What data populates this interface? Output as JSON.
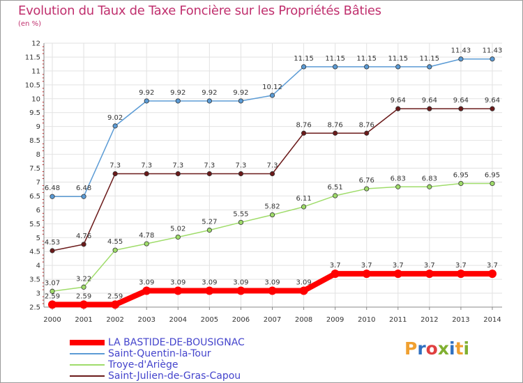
{
  "title": "Evolution du Taux de Taxe Foncière sur les Propriétés Bâties",
  "subtitle": "(en %)",
  "logo": {
    "text": "Proxiti",
    "letters": [
      "P",
      "r",
      "o",
      "x",
      "i",
      "t",
      "i"
    ],
    "colors": [
      "#f0a030",
      "#3070c0",
      "#e04040",
      "#80b030",
      "#3070c0",
      "#f0a030",
      "#80b030"
    ]
  },
  "chart_data": {
    "type": "line",
    "title": "Evolution du Taux de Taxe Foncière sur les Propriétés Bâties",
    "ylabel": "(en %)",
    "xlabel": "",
    "x": [
      "2000",
      "2001",
      "2002",
      "2003",
      "2004",
      "2005",
      "2006",
      "2007",
      "2008",
      "2009",
      "2010",
      "2011",
      "2012",
      "2013",
      "2014"
    ],
    "ylim": [
      2.5,
      12
    ],
    "yticks": [
      "2.5",
      "3",
      "3.5",
      "4",
      "4.5",
      "5",
      "5.5",
      "6",
      "6.5",
      "7",
      "7.5",
      "8",
      "8.5",
      "9",
      "9.5",
      "10",
      "10.5",
      "11",
      "11.5",
      "12"
    ],
    "grid": true,
    "series": [
      {
        "name": "Saint-Quentin-la-Tour",
        "color": "#5b9bd5",
        "bold": false,
        "values": [
          6.48,
          6.48,
          9.02,
          9.92,
          9.92,
          9.92,
          9.92,
          10.12,
          11.15,
          11.15,
          11.15,
          11.15,
          11.15,
          11.43,
          11.43
        ],
        "labels": [
          "6.48",
          "6.48",
          "9.02",
          "9.92",
          "9.92",
          "9.92",
          "9.92",
          "10.12",
          "11.15",
          "11.15",
          "11.15",
          "11.15",
          "11.15",
          "11.43",
          "11.43"
        ]
      },
      {
        "name": "Saint-Julien-de-Gras-Capou",
        "color": "#6b1a1a",
        "bold": false,
        "values": [
          4.53,
          4.76,
          7.3,
          7.3,
          7.3,
          7.3,
          7.3,
          7.3,
          8.76,
          8.76,
          8.76,
          9.64,
          9.64,
          9.64,
          9.64
        ],
        "labels": [
          "4.53",
          "4.76",
          "7.3",
          "7.3",
          "7.3",
          "7.3",
          "7.3",
          "7.3",
          "8.76",
          "8.76",
          "8.76",
          "9.64",
          "9.64",
          "9.64",
          "9.64"
        ]
      },
      {
        "name": "Troye-d'Ariège",
        "color": "#9fdc6a",
        "bold": false,
        "values": [
          3.07,
          3.22,
          4.55,
          4.78,
          5.02,
          5.27,
          5.55,
          5.82,
          6.11,
          6.51,
          6.76,
          6.83,
          6.83,
          6.95,
          6.95
        ],
        "labels": [
          "3.07",
          "3.22",
          "4.55",
          "4.78",
          "5.02",
          "5.27",
          "5.55",
          "5.82",
          "6.11",
          "6.51",
          "6.76",
          "6.83",
          "6.83",
          "6.95",
          "6.95"
        ]
      },
      {
        "name": "LA BASTIDE-DE-BOUSIGNAC",
        "color": "#ff0000",
        "bold": true,
        "values": [
          2.59,
          2.59,
          2.59,
          3.09,
          3.09,
          3.09,
          3.09,
          3.09,
          3.09,
          3.7,
          3.7,
          3.7,
          3.7,
          3.7,
          3.7
        ],
        "labels": [
          "2.59",
          "2.59",
          "2.59",
          "3.09",
          "3.09",
          "3.09",
          "3.09",
          "3.09",
          "3.09",
          "3.7",
          "3.7",
          "3.7",
          "3.7",
          "3.7",
          "3.7"
        ]
      }
    ],
    "legend_order": [
      "LA BASTIDE-DE-BOUSIGNAC",
      "Saint-Quentin-la-Tour",
      "Troye-d'Ariège",
      "Saint-Julien-de-Gras-Capou"
    ]
  }
}
